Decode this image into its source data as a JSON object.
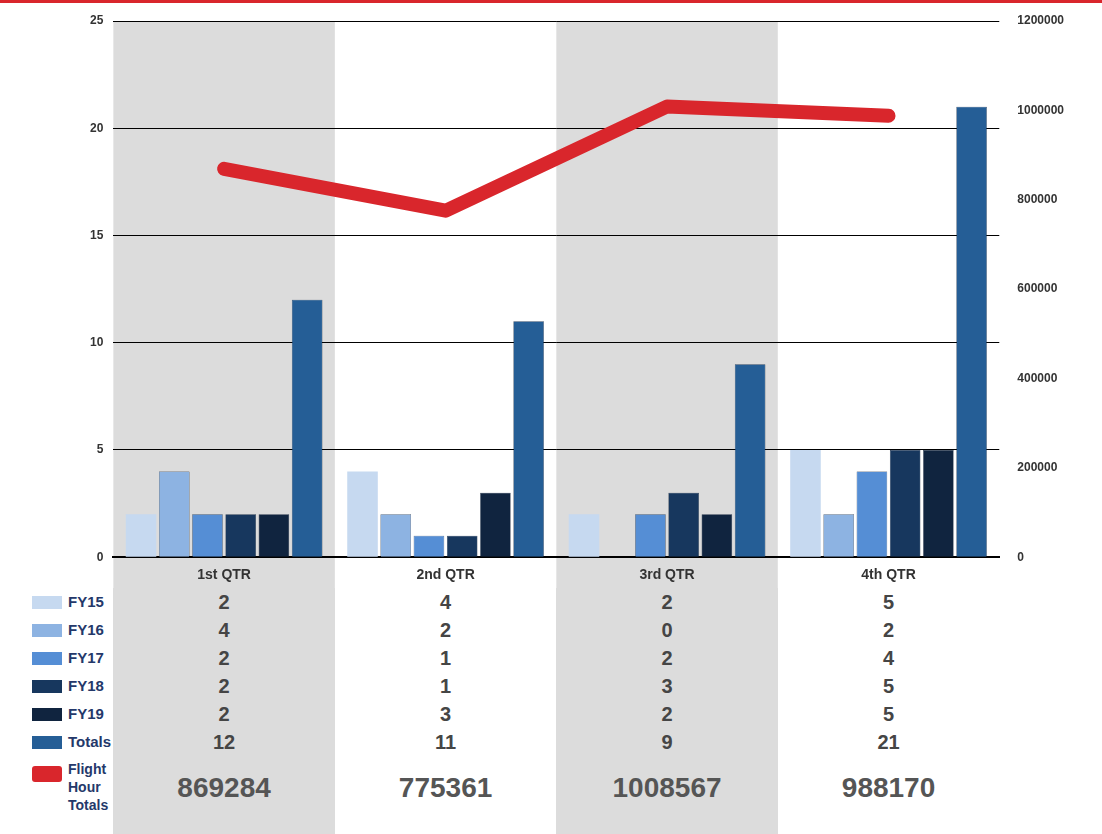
{
  "chart_data": {
    "type": "bar",
    "categories": [
      "1st QTR",
      "2nd QTR",
      "3rd QTR",
      "4th QTR"
    ],
    "series": [
      {
        "name": "FY15",
        "color": "#c6d9f0",
        "values": [
          2,
          4,
          2,
          5
        ]
      },
      {
        "name": "FY16",
        "color": "#8db3e2",
        "values": [
          4,
          2,
          0,
          2
        ]
      },
      {
        "name": "FY17",
        "color": "#558ed5",
        "values": [
          2,
          1,
          2,
          4
        ]
      },
      {
        "name": "FY18",
        "color": "#17375e",
        "values": [
          2,
          1,
          3,
          5
        ]
      },
      {
        "name": "FY19",
        "color": "#10243f",
        "values": [
          2,
          3,
          2,
          5
        ]
      },
      {
        "name": "Totals",
        "color": "#255e96",
        "values": [
          12,
          11,
          9,
          21
        ]
      },
      {
        "name": "Flight Hour Totals",
        "type": "line",
        "color": "#d9262c",
        "axis": "y2",
        "values": [
          869284,
          775361,
          1008567,
          988170
        ]
      }
    ],
    "ylim": [
      0,
      25
    ],
    "yticks": [
      0,
      5,
      10,
      15,
      20,
      25
    ],
    "y2lim": [
      0,
      1200000
    ],
    "y2ticks": [
      0,
      200000,
      400000,
      600000,
      800000,
      1000000,
      1200000
    ],
    "grid": true,
    "legend": "bottom"
  }
}
